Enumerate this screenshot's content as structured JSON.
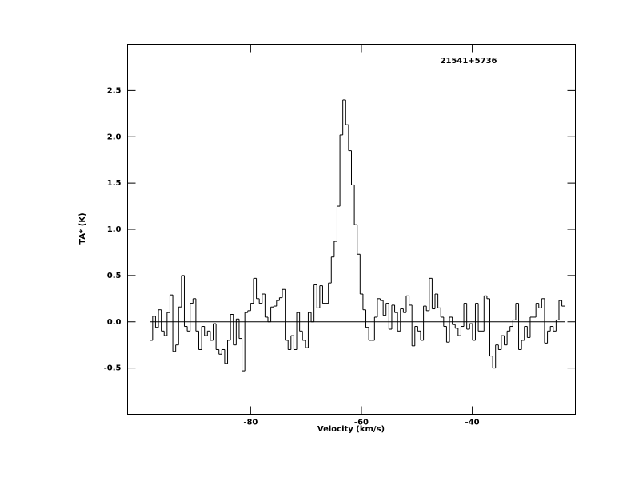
{
  "chart_data": {
    "type": "step",
    "title": "21541+5736",
    "xlabel": "Velocity (km/s)",
    "ylabel": "TA* (K)",
    "x": [
      -97.94,
      -97.42,
      -96.9,
      -96.38,
      -95.86,
      -95.34,
      -94.82,
      -94.3,
      -93.78,
      -93.26,
      -92.74,
      -92.22,
      -91.7,
      -91.18,
      -90.66,
      -90.14,
      -89.62,
      -89.1,
      -88.58,
      -88.06,
      -87.54,
      -87.02,
      -86.5,
      -85.98,
      -85.46,
      -84.94,
      -84.42,
      -83.9,
      -83.38,
      -82.86,
      -82.34,
      -81.82,
      -81.3,
      -80.78,
      -80.26,
      -79.74,
      -79.22,
      -78.7,
      -78.18,
      -77.66,
      -77.14,
      -76.62,
      -76.1,
      -75.58,
      -75.06,
      -74.54,
      -74.02,
      -73.5,
      -72.98,
      -72.46,
      -71.94,
      -71.42,
      -70.9,
      -70.38,
      -69.86,
      -69.34,
      -68.82,
      -68.3,
      -67.78,
      -67.26,
      -66.74,
      -66.22,
      -65.7,
      -65.18,
      -64.66,
      -64.14,
      -63.62,
      -63.1,
      -62.58,
      -62.06,
      -61.54,
      -61.02,
      -60.5,
      -59.98,
      -59.46,
      -58.94,
      -58.42,
      -57.9,
      -57.38,
      -56.86,
      -56.34,
      -55.82,
      -55.3,
      -54.78,
      -54.26,
      -53.74,
      -53.22,
      -52.7,
      -52.18,
      -51.66,
      -51.14,
      -50.62,
      -50.1,
      -49.58,
      -49.06,
      -48.54,
      -48.02,
      -47.5,
      -46.98,
      -46.46,
      -45.94,
      -45.42,
      -44.9,
      -44.38,
      -43.86,
      -43.34,
      -42.82,
      -42.3,
      -41.78,
      -41.26,
      -40.74,
      -40.22,
      -39.7,
      -39.18,
      -38.66,
      -38.14,
      -37.62,
      -37.1,
      -36.58,
      -36.06,
      -35.54,
      -35.02,
      -34.5,
      -33.98,
      -33.46,
      -32.94,
      -32.42,
      -31.9,
      -31.38,
      -30.86,
      -30.34,
      -29.82,
      -29.3,
      -28.78,
      -28.26,
      -27.74,
      -27.22,
      -26.7,
      -26.18,
      -25.66,
      -25.14,
      -24.62,
      -24.1,
      -23.58
    ],
    "values": [
      -0.2,
      0.06,
      -0.06,
      0.13,
      -0.1,
      -0.15,
      0.1,
      0.29,
      -0.32,
      -0.25,
      0.16,
      0.5,
      -0.05,
      -0.1,
      0.2,
      0.25,
      -0.1,
      -0.3,
      -0.05,
      -0.15,
      -0.1,
      -0.2,
      -0.02,
      -0.3,
      -0.35,
      -0.3,
      -0.45,
      -0.2,
      0.08,
      -0.25,
      0.03,
      -0.18,
      -0.53,
      0.1,
      0.12,
      0.2,
      0.47,
      0.25,
      0.2,
      0.3,
      0.05,
      0.0,
      0.16,
      0.17,
      0.23,
      0.26,
      0.35,
      -0.2,
      -0.3,
      -0.15,
      -0.3,
      0.1,
      -0.1,
      -0.2,
      -0.28,
      0.1,
      0.0,
      0.4,
      0.15,
      0.39,
      0.2,
      0.2,
      0.42,
      0.7,
      0.87,
      1.25,
      2.02,
      2.4,
      2.13,
      1.85,
      1.48,
      1.05,
      0.73,
      0.3,
      0.13,
      -0.06,
      -0.2,
      -0.2,
      0.05,
      0.25,
      0.23,
      0.07,
      0.2,
      -0.08,
      0.18,
      0.1,
      -0.1,
      0.14,
      0.1,
      0.28,
      0.18,
      -0.26,
      -0.05,
      -0.1,
      -0.2,
      0.17,
      0.12,
      0.47,
      0.14,
      0.3,
      0.15,
      0.05,
      -0.05,
      -0.22,
      0.05,
      -0.03,
      -0.07,
      -0.15,
      -0.05,
      0.2,
      -0.08,
      -0.02,
      -0.2,
      0.2,
      -0.1,
      -0.1,
      0.28,
      0.25,
      -0.37,
      -0.5,
      -0.25,
      -0.3,
      -0.15,
      -0.25,
      -0.1,
      -0.05,
      0.02,
      0.2,
      -0.3,
      -0.2,
      -0.05,
      -0.17,
      0.05,
      0.05,
      0.2,
      0.15,
      0.25,
      -0.23,
      -0.1,
      -0.05,
      -0.1,
      0.02,
      0.23,
      0.17
    ],
    "color": "#000000",
    "hline": 0,
    "xlim": [
      -102.2,
      -21.4
    ],
    "xticks": [
      -80,
      -60,
      -40
    ],
    "ylim": [
      -1.0,
      3.0
    ],
    "yticks": [
      {
        "value": -0.5,
        "label": "-0.5"
      },
      {
        "value": 0,
        "label": "0.0"
      },
      {
        "value": 0.5,
        "label": "0.5"
      },
      {
        "value": 1,
        "label": "1.0"
      },
      {
        "value": 1.5,
        "label": "1.5"
      },
      {
        "value": 2,
        "label": "2.0"
      },
      {
        "value": 2.5,
        "label": "2.5"
      }
    ]
  }
}
